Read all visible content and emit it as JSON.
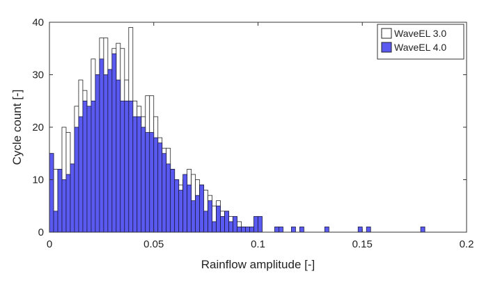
{
  "chart_data": {
    "type": "bar",
    "xlabel": "Rainflow amplitude [-]",
    "ylabel": "Cycle count [-]",
    "xlim": [
      0,
      0.2
    ],
    "ylim": [
      0,
      40
    ],
    "xticks": [
      "0",
      "0.05",
      "0.1",
      "0.15",
      "0.2"
    ],
    "yticks": [
      "0",
      "10",
      "20",
      "30",
      "40"
    ],
    "bin_width": 0.002,
    "legend_position": "top-right",
    "grid": false,
    "series": [
      {
        "name": "WaveEL 3.0",
        "color": "#ffffff",
        "x": [
          0.001,
          0.003,
          0.005,
          0.007,
          0.009,
          0.011,
          0.013,
          0.015,
          0.017,
          0.019,
          0.021,
          0.023,
          0.025,
          0.027,
          0.029,
          0.031,
          0.033,
          0.035,
          0.037,
          0.039,
          0.041,
          0.043,
          0.045,
          0.047,
          0.049,
          0.051,
          0.053,
          0.055,
          0.057,
          0.059,
          0.061,
          0.063,
          0.065,
          0.067,
          0.069,
          0.071,
          0.073,
          0.075,
          0.077,
          0.079,
          0.081,
          0.083,
          0.085,
          0.087,
          0.089,
          0.091,
          0.093
        ],
        "values": [
          15,
          12,
          12,
          20,
          19,
          13,
          24,
          29,
          27,
          20,
          33,
          30,
          37,
          37,
          31,
          35,
          36,
          35,
          29,
          39,
          25,
          24,
          22,
          26,
          26,
          22,
          18,
          16,
          16,
          12,
          10,
          9,
          10,
          12,
          11,
          10,
          9,
          8,
          7,
          5,
          6,
          4,
          4,
          3,
          2,
          2,
          1
        ]
      },
      {
        "name": "WaveEL 4.0",
        "color": "#5a5af0",
        "x": [
          0.001,
          0.003,
          0.005,
          0.007,
          0.009,
          0.011,
          0.013,
          0.015,
          0.017,
          0.019,
          0.021,
          0.023,
          0.025,
          0.027,
          0.029,
          0.031,
          0.033,
          0.035,
          0.037,
          0.039,
          0.041,
          0.043,
          0.045,
          0.047,
          0.049,
          0.051,
          0.053,
          0.055,
          0.057,
          0.059,
          0.061,
          0.063,
          0.065,
          0.067,
          0.069,
          0.071,
          0.073,
          0.075,
          0.077,
          0.079,
          0.081,
          0.083,
          0.085,
          0.087,
          0.089,
          0.091,
          0.093,
          0.095,
          0.097,
          0.099,
          0.101,
          0.109,
          0.111,
          0.117,
          0.121,
          0.133,
          0.149,
          0.153,
          0.179
        ],
        "values": [
          15,
          4,
          12,
          10,
          11,
          13,
          20,
          22,
          25,
          24,
          25,
          30,
          33,
          30,
          31,
          34,
          29,
          25,
          25,
          25,
          22,
          22,
          20,
          19,
          19,
          18,
          17,
          15,
          13,
          12,
          10,
          8,
          11,
          9,
          6,
          7,
          9,
          4,
          6,
          2,
          5,
          3,
          4,
          2,
          3,
          1,
          1,
          1,
          1,
          3,
          3,
          1,
          1,
          1,
          1,
          1,
          1,
          1,
          1
        ]
      }
    ]
  }
}
